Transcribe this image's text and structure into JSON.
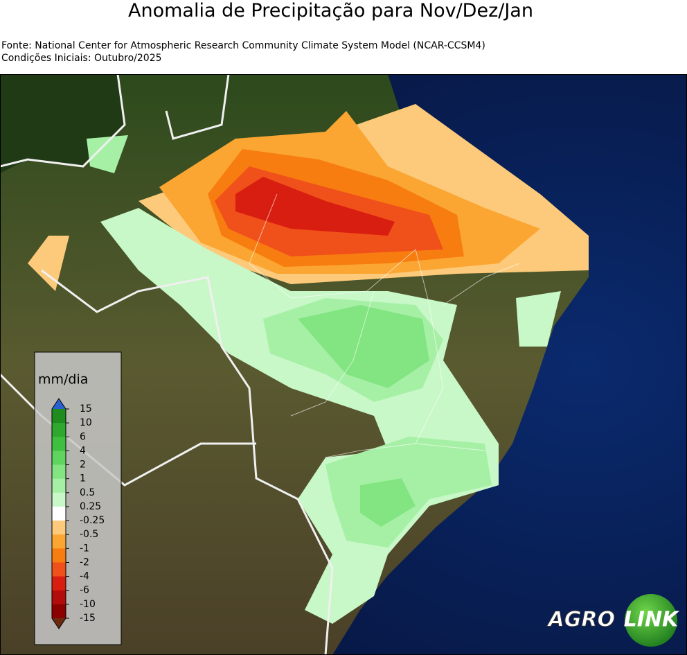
{
  "title": "Anomalia de Precipitação para Nov/Dez/Jan",
  "source": "Fonte: National Center for Atmospheric Research Community Climate System Model (NCAR-CCSM4)",
  "initial_conditions": "Condições Iniciais: Outubro/2025",
  "colorbar": {
    "title": "mm/dia",
    "ticks": [
      15,
      10,
      6,
      4,
      2,
      1,
      0.5,
      0.25,
      -0.25,
      -0.5,
      -1,
      -2,
      -4,
      -6,
      -10,
      -15
    ],
    "colors": [
      "#1e8c1e",
      "#2ea82e",
      "#3fbf3f",
      "#5fd45f",
      "#82e582",
      "#a6f0a6",
      "#c8f7c8",
      "#ffffff",
      "#fcca7a",
      "#fba632",
      "#f77d10",
      "#f0501a",
      "#d81e10",
      "#b20c0c",
      "#8c0000"
    ],
    "over_color": "#2a5fd0",
    "under_color": "#6b2a10"
  },
  "logo": {
    "left": "AGRO",
    "right": "LINK"
  }
}
